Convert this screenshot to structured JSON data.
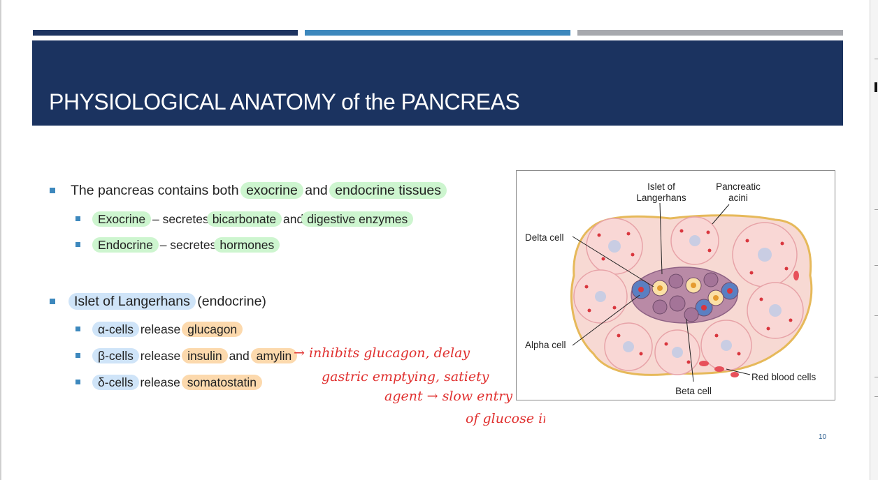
{
  "slide": {
    "title": "PHYSIOLOGICAL ANATOMY of the PANCREAS",
    "page_number": "10",
    "bullets": {
      "b1": {
        "pre": "The pancreas contains both",
        "hl1": "exocrine",
        "mid": "and",
        "hl2": "endocrine tissues"
      },
      "b1a": {
        "hl1": "Exocrine",
        "mid": "– secretes",
        "hl2": "bicarbonate",
        "mid2": "and",
        "hl3": "digestive enzymes"
      },
      "b1b": {
        "hl1": "Endocrine",
        "mid": "– secretes",
        "hl2": "hormones"
      },
      "b2": {
        "hl": "Islet of Langerhans",
        "post": "(endocrine)"
      },
      "b2a": {
        "hl1": "α-cells",
        "mid": "release",
        "hl2": "glucagon"
      },
      "b2b": {
        "hl1": "β-cells",
        "mid": "release",
        "hl2": "insulin",
        "mid2": "and",
        "hl3": "amylin"
      },
      "b2c": {
        "hl1": "δ-cells",
        "mid": "release",
        "hl2": "somatostatin"
      }
    },
    "handwritten_note": {
      "line1": "→ inhibits glucagon, delay",
      "line2": "gastric emptying, satiety",
      "line3": "agent → slow entry",
      "line4": "of glucose into body"
    },
    "figure": {
      "labels": {
        "islet": [
          "Islet of",
          "Langerhans"
        ],
        "acini": [
          "Pancreatic",
          "acini"
        ],
        "delta": "Delta cell",
        "alpha": "Alpha cell",
        "beta": "Beta cell",
        "rbc": "Red blood cells"
      }
    },
    "colors": {
      "title_band": "#1b3360",
      "bar1": "#1e3461",
      "bar2": "#3d88bd",
      "bar3": "#a7a9ae",
      "highlight_green": "#cdf5cf",
      "highlight_blue": "#cfe4f8",
      "highlight_orange": "#fcd9ad",
      "ink": "#e0302f"
    }
  }
}
